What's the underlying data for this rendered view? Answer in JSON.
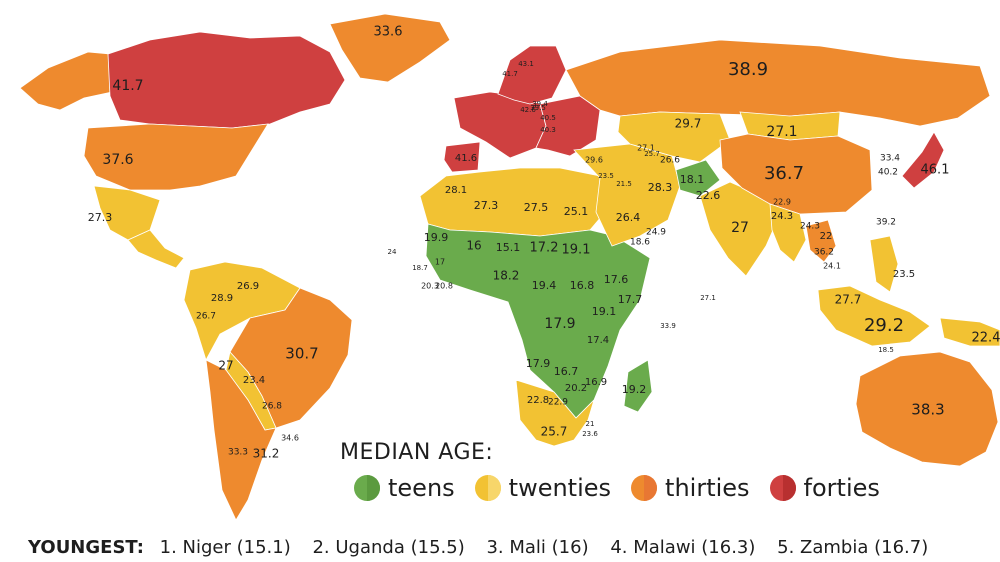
{
  "colors": {
    "teens": "#6aab4c",
    "twenties": "#f2c233",
    "thirties": "#ee8a2e",
    "forties": "#cf4040",
    "background": "#ffffff"
  },
  "legend": {
    "title": "MEDIAN AGE:",
    "items": [
      {
        "label": "teens",
        "color": "#6aab4c",
        "shade": "#5b9a3f"
      },
      {
        "label": "twenties",
        "color": "#f2c233",
        "shade": "#f7d66a"
      },
      {
        "label": "thirties",
        "color": "#ee8a2e",
        "shade": "#e87733"
      },
      {
        "label": "forties",
        "color": "#cf4040",
        "shade": "#b83030"
      }
    ]
  },
  "footer": {
    "heading": "YOUNGEST:",
    "items": [
      "1. Niger (15.1)",
      "2. Uganda (15.5)",
      "3. Mali (16)",
      "4. Malawi (16.3)",
      "5. Zambia (16.7)"
    ]
  },
  "regions": [
    {
      "id": "canada",
      "category": "forties"
    },
    {
      "id": "alaska",
      "category": "thirties"
    },
    {
      "id": "greenland",
      "category": "thirties"
    },
    {
      "id": "usa",
      "category": "thirties"
    },
    {
      "id": "mexico",
      "category": "twenties"
    },
    {
      "id": "central-america",
      "category": "twenties"
    },
    {
      "id": "south-america-north",
      "category": "twenties"
    },
    {
      "id": "brazil",
      "category": "thirties"
    },
    {
      "id": "bolivia",
      "category": "twenties"
    },
    {
      "id": "southern-cone",
      "category": "thirties"
    },
    {
      "id": "europe-west",
      "category": "forties"
    },
    {
      "id": "scandinavia",
      "category": "forties"
    },
    {
      "id": "eastern-europe",
      "category": "forties"
    },
    {
      "id": "iberia",
      "category": "forties"
    },
    {
      "id": "russia",
      "category": "thirties"
    },
    {
      "id": "north-africa",
      "category": "twenties"
    },
    {
      "id": "sub-saharan-africa",
      "category": "teens"
    },
    {
      "id": "southern-africa",
      "category": "twenties"
    },
    {
      "id": "madagascar",
      "category": "teens"
    },
    {
      "id": "middle-east",
      "category": "twenties"
    },
    {
      "id": "central-asia",
      "category": "twenties"
    },
    {
      "id": "afghanistan",
      "category": "teens"
    },
    {
      "id": "india",
      "category": "twenties"
    },
    {
      "id": "china",
      "category": "thirties"
    },
    {
      "id": "mongolia",
      "category": "twenties"
    },
    {
      "id": "japan",
      "category": "forties"
    },
    {
      "id": "southeast-asia",
      "category": "twenties"
    },
    {
      "id": "thailand",
      "category": "thirties"
    },
    {
      "id": "indonesia",
      "category": "twenties"
    },
    {
      "id": "philippines",
      "category": "twenties"
    },
    {
      "id": "png",
      "category": "twenties"
    },
    {
      "id": "australia",
      "category": "thirties"
    }
  ],
  "labels": [
    {
      "text": "33.6",
      "size": 13
    },
    {
      "text": "41.7",
      "size": 14
    },
    {
      "text": "37.6",
      "size": 14
    },
    {
      "text": "27.3",
      "size": 11
    },
    {
      "text": "38.9",
      "size": 18
    },
    {
      "text": "27.1",
      "size": 14
    },
    {
      "text": "29.7",
      "size": 12
    },
    {
      "text": "36.7",
      "size": 18
    },
    {
      "text": "46.1",
      "size": 13
    },
    {
      "text": "33.4",
      "size": 9
    },
    {
      "text": "40.2",
      "size": 9
    },
    {
      "text": "28.1",
      "size": 10
    },
    {
      "text": "27.3",
      "size": 11
    },
    {
      "text": "27.5",
      "size": 11
    },
    {
      "text": "25.1",
      "size": 11
    },
    {
      "text": "19.9",
      "size": 11
    },
    {
      "text": "16",
      "size": 12
    },
    {
      "text": "15.1",
      "size": 11
    },
    {
      "text": "17.2",
      "size": 13
    },
    {
      "text": "19.1",
      "size": 13
    },
    {
      "text": "18.2",
      "size": 12
    },
    {
      "text": "19.4",
      "size": 11
    },
    {
      "text": "16.8",
      "size": 11
    },
    {
      "text": "17.6",
      "size": 11
    },
    {
      "text": "17.7",
      "size": 11
    },
    {
      "text": "17.9",
      "size": 14
    },
    {
      "text": "19.1",
      "size": 11
    },
    {
      "text": "17.4",
      "size": 10
    },
    {
      "text": "17.9",
      "size": 11
    },
    {
      "text": "16.7",
      "size": 11
    },
    {
      "text": "16.9",
      "size": 10
    },
    {
      "text": "20.2",
      "size": 10
    },
    {
      "text": "22.8",
      "size": 10
    },
    {
      "text": "22.9",
      "size": 9
    },
    {
      "text": "25.7",
      "size": 12
    },
    {
      "text": "19.2",
      "size": 11
    },
    {
      "text": "26.4",
      "size": 11
    },
    {
      "text": "28.3",
      "size": 11
    },
    {
      "text": "18.1",
      "size": 11
    },
    {
      "text": "22.6",
      "size": 11
    },
    {
      "text": "27",
      "size": 14
    },
    {
      "text": "24.3",
      "size": 10
    },
    {
      "text": "26.6",
      "size": 9
    },
    {
      "text": "18.6",
      "size": 9
    },
    {
      "text": "24.9",
      "size": 9
    },
    {
      "text": "26.9",
      "size": 10
    },
    {
      "text": "28.9",
      "size": 10
    },
    {
      "text": "26.7",
      "size": 9
    },
    {
      "text": "27",
      "size": 12
    },
    {
      "text": "30.7",
      "size": 15
    },
    {
      "text": "23.4",
      "size": 10
    },
    {
      "text": "26.8",
      "size": 9
    },
    {
      "text": "31.2",
      "size": 12
    },
    {
      "text": "33.3",
      "size": 9
    },
    {
      "text": "34.6",
      "size": 8
    },
    {
      "text": "38.3",
      "size": 15
    },
    {
      "text": "29.2",
      "size": 18
    },
    {
      "text": "27.7",
      "size": 12
    },
    {
      "text": "22.4",
      "size": 13
    },
    {
      "text": "23.5",
      "size": 10
    },
    {
      "text": "39.2",
      "size": 9
    },
    {
      "text": "22",
      "size": 10
    },
    {
      "text": "36.2",
      "size": 9
    },
    {
      "text": "24.1",
      "size": 8
    },
    {
      "text": "24.3",
      "size": 9
    },
    {
      "text": "22.9",
      "size": 8
    },
    {
      "text": "29.6",
      "size": 8
    },
    {
      "text": "23.5",
      "size": 7
    },
    {
      "text": "21.5",
      "size": 7
    },
    {
      "text": "27.1",
      "size": 8
    },
    {
      "text": "25.7",
      "size": 7
    },
    {
      "text": "21",
      "size": 7
    },
    {
      "text": "23.6",
      "size": 7
    },
    {
      "text": "18.5",
      "size": 7
    },
    {
      "text": "33.9",
      "size": 7
    },
    {
      "text": "27.1",
      "size": 7
    },
    {
      "text": "24",
      "size": 7
    },
    {
      "text": "20.3",
      "size": 8
    },
    {
      "text": "20.8",
      "size": 8
    },
    {
      "text": "18.7",
      "size": 7
    },
    {
      "text": "17",
      "size": 8
    },
    {
      "text": "41.6",
      "size": 10
    },
    {
      "text": "39.5",
      "size": 7
    },
    {
      "text": "42.6",
      "size": 7
    },
    {
      "text": "40.5",
      "size": 7
    },
    {
      "text": "40.3",
      "size": 7
    },
    {
      "text": "41.7",
      "size": 7
    },
    {
      "text": "43.1",
      "size": 7
    },
    {
      "text": "39.4",
      "size": 7
    }
  ]
}
